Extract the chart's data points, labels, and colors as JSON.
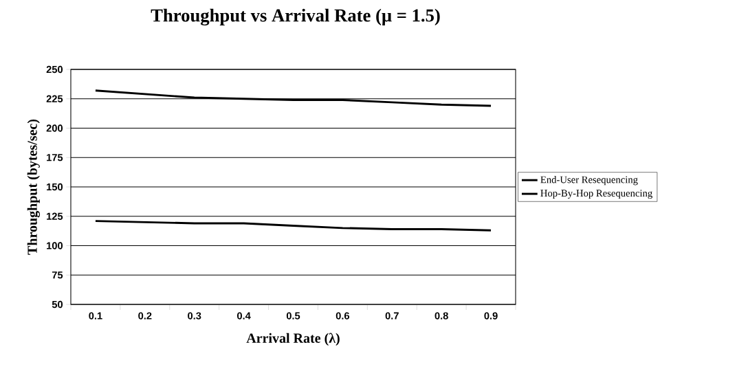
{
  "chart_data": {
    "type": "line",
    "title": "Throughput vs Arrival Rate (μ = 1.5)",
    "xlabel": "Arrival Rate (λ)",
    "ylabel": "Throughput (bytes/sec)",
    "categories": [
      "0.1",
      "0.2",
      "0.3",
      "0.4",
      "0.5",
      "0.6",
      "0.7",
      "0.8",
      "0.9"
    ],
    "series": [
      {
        "name": "End-User Resequencing",
        "color": "#000000",
        "values": [
          232,
          229,
          226,
          225,
          224,
          224,
          222,
          220,
          219
        ]
      },
      {
        "name": "Hop-By-Hop Resequencing",
        "color": "#000000",
        "values": [
          121,
          120,
          119,
          119,
          117,
          115,
          114,
          114,
          113
        ]
      }
    ],
    "ylim": [
      50,
      250
    ],
    "yticks": [
      50,
      75,
      100,
      125,
      150,
      175,
      200,
      225,
      250
    ],
    "grid": "y",
    "legend": "right",
    "marker": "none",
    "line_style": "solid"
  }
}
